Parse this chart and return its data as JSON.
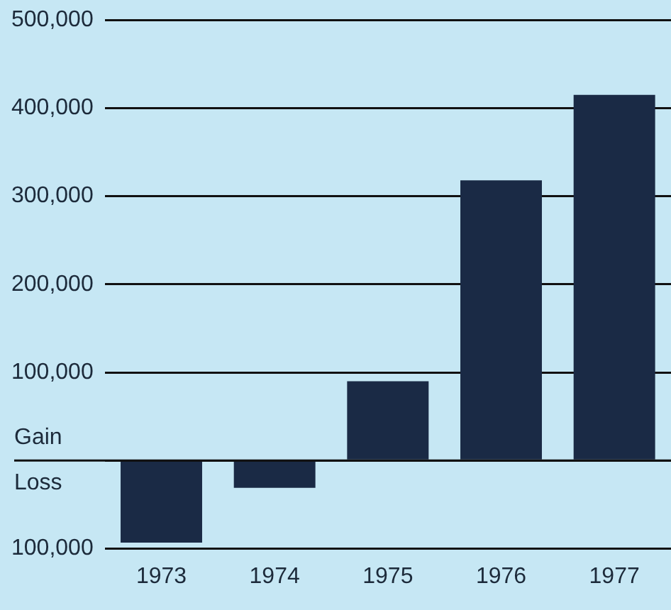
{
  "chart_data": {
    "type": "bar",
    "categories": [
      "1973",
      "1974",
      "1975",
      "1976",
      "1977"
    ],
    "values": [
      -93000,
      -31000,
      90000,
      318000,
      415000
    ],
    "color": "#1a2a45",
    "ylim": [
      -100000,
      500000
    ],
    "yticks": [
      {
        "value": -100000,
        "label": "100,000"
      },
      {
        "value": 0,
        "label": null
      },
      {
        "value": 100000,
        "label": "100,000"
      },
      {
        "value": 200000,
        "label": "200,000"
      },
      {
        "value": 300000,
        "label": "300,000"
      },
      {
        "value": 400000,
        "label": "400,000"
      },
      {
        "value": 500000,
        "label": "500,000"
      }
    ],
    "annotations": [
      "Gain",
      "Loss"
    ],
    "grid": "y",
    "legend": false
  }
}
